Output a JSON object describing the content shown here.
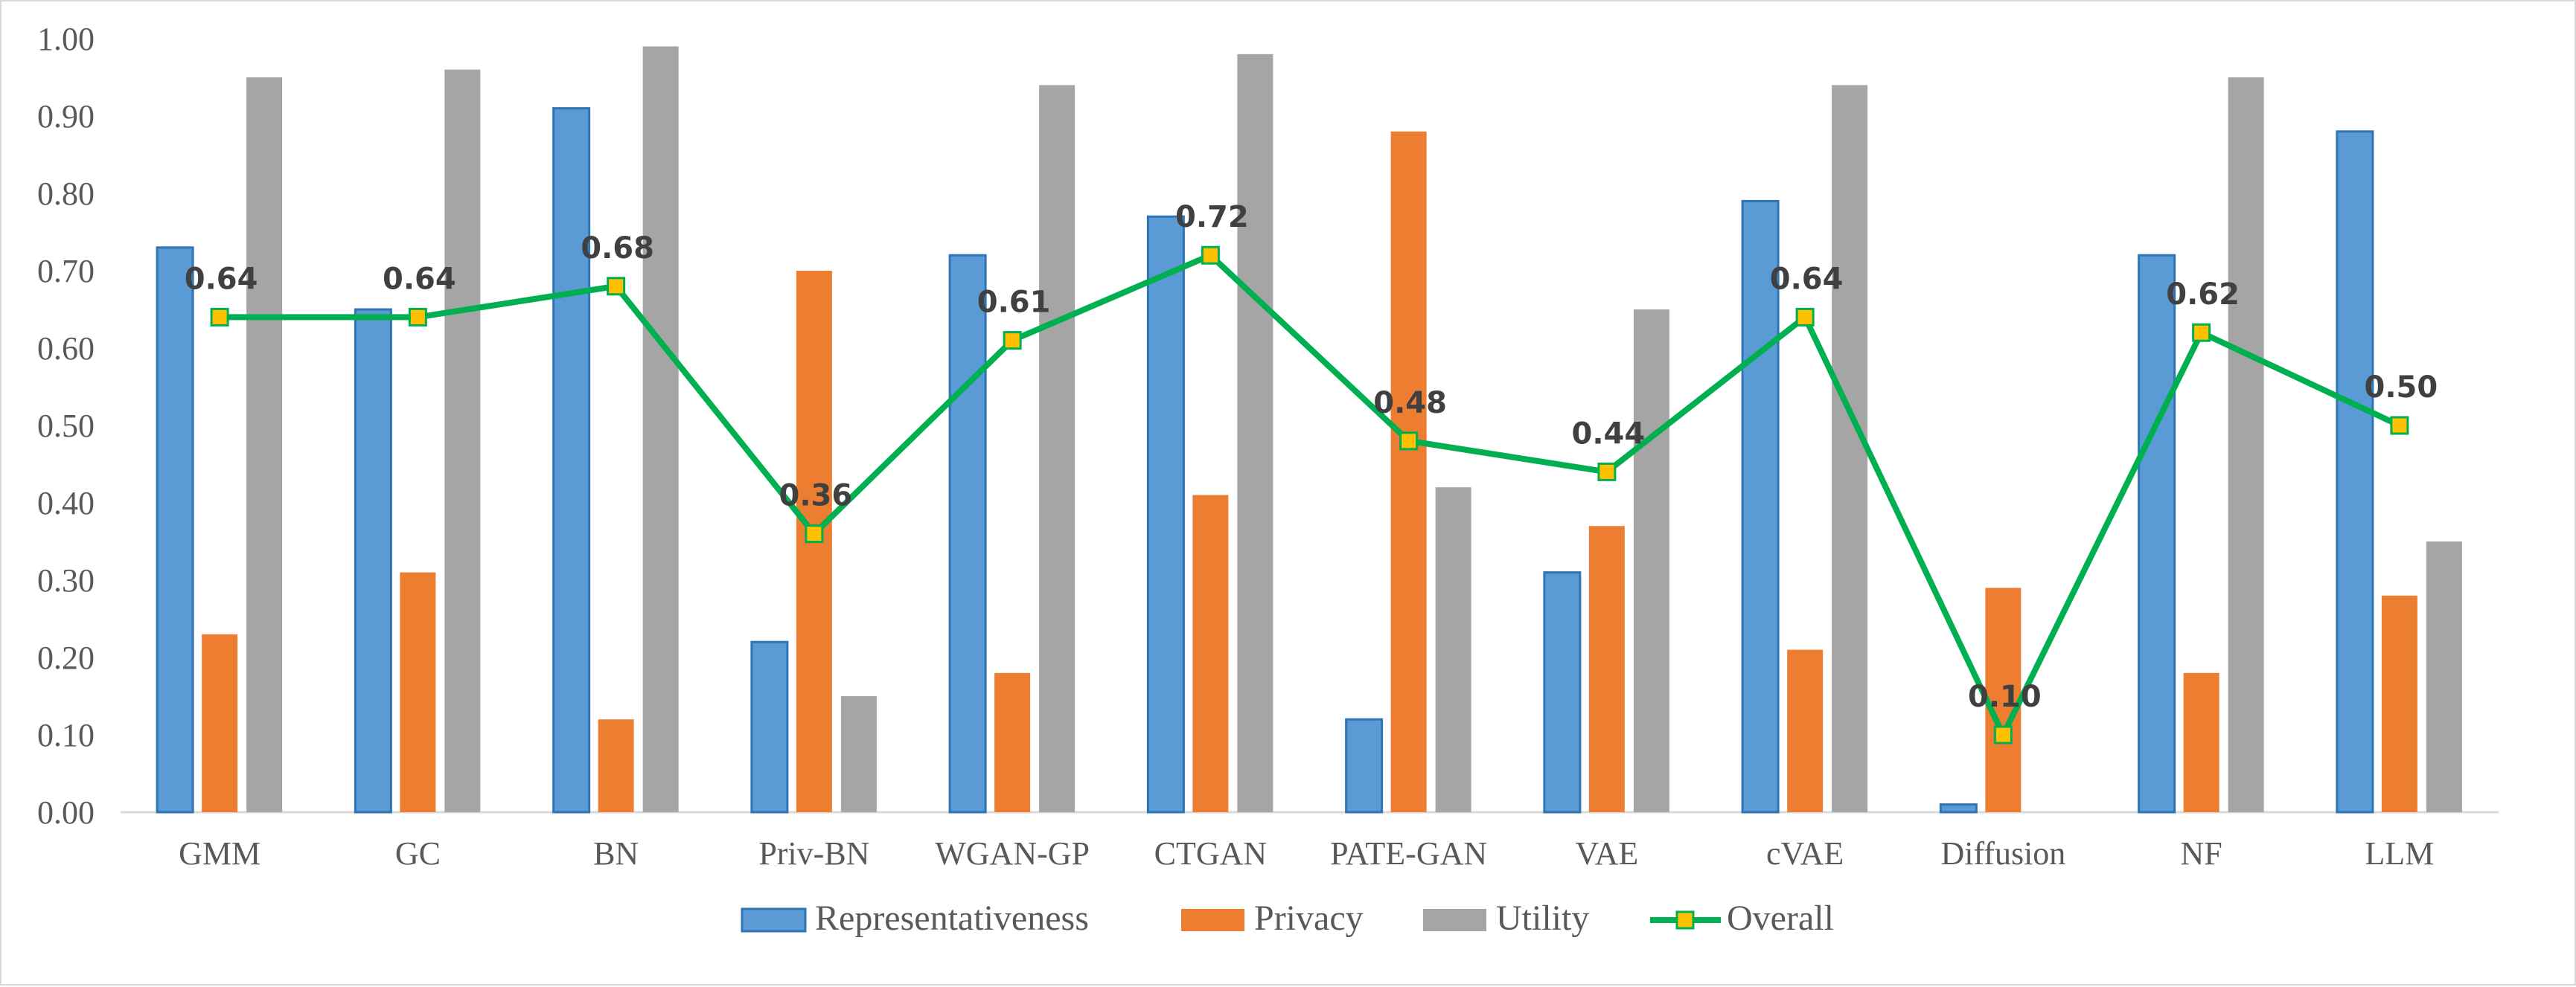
{
  "chart_data": {
    "type": "bar",
    "categories": [
      "GMM",
      "GC",
      "BN",
      "Priv-BN",
      "WGAN-GP",
      "CTGAN",
      "PATE-GAN",
      "VAE",
      "cVAE",
      "Diffusion",
      "NF",
      "LLM"
    ],
    "series": [
      {
        "name": "Representativeness",
        "type": "bar",
        "color": "#5b9bd5",
        "border": "#2e75b6",
        "values": [
          0.73,
          0.65,
          0.91,
          0.22,
          0.72,
          0.77,
          0.12,
          0.31,
          0.79,
          0.01,
          0.72,
          0.88
        ]
      },
      {
        "name": "Privacy",
        "type": "bar",
        "color": "#ed7d31",
        "values": [
          0.23,
          0.31,
          0.12,
          0.7,
          0.18,
          0.41,
          0.88,
          0.37,
          0.21,
          0.29,
          0.18,
          0.28
        ]
      },
      {
        "name": "Utility",
        "type": "bar",
        "color": "#a5a5a5",
        "values": [
          0.95,
          0.96,
          0.99,
          0.15,
          0.94,
          0.98,
          0.42,
          0.65,
          0.94,
          0.0,
          0.95,
          0.35
        ]
      },
      {
        "name": "Overall",
        "type": "line",
        "color": "#00b050",
        "marker_fill": "#ffc000",
        "marker_border": "#00b050",
        "values": [
          0.64,
          0.64,
          0.68,
          0.36,
          0.61,
          0.72,
          0.48,
          0.44,
          0.64,
          0.1,
          0.62,
          0.5
        ],
        "labels": [
          "0.64",
          "0.64",
          "0.68",
          "0.36",
          "0.61",
          "0.72",
          "0.48",
          "0.44",
          "0.64",
          "0.10",
          "0.62",
          "0.50"
        ]
      }
    ],
    "ylim": [
      0,
      1
    ],
    "yticks": [
      0,
      0.1,
      0.2,
      0.3,
      0.4,
      0.5,
      0.6,
      0.7,
      0.8,
      0.9,
      1.0
    ],
    "ytick_labels": [
      "0.00",
      "0.10",
      "0.20",
      "0.30",
      "0.40",
      "0.50",
      "0.60",
      "0.70",
      "0.80",
      "0.90",
      "1.00"
    ],
    "grid": false,
    "legend_position": "bottom",
    "title": "",
    "xlabel": "",
    "ylabel": ""
  }
}
